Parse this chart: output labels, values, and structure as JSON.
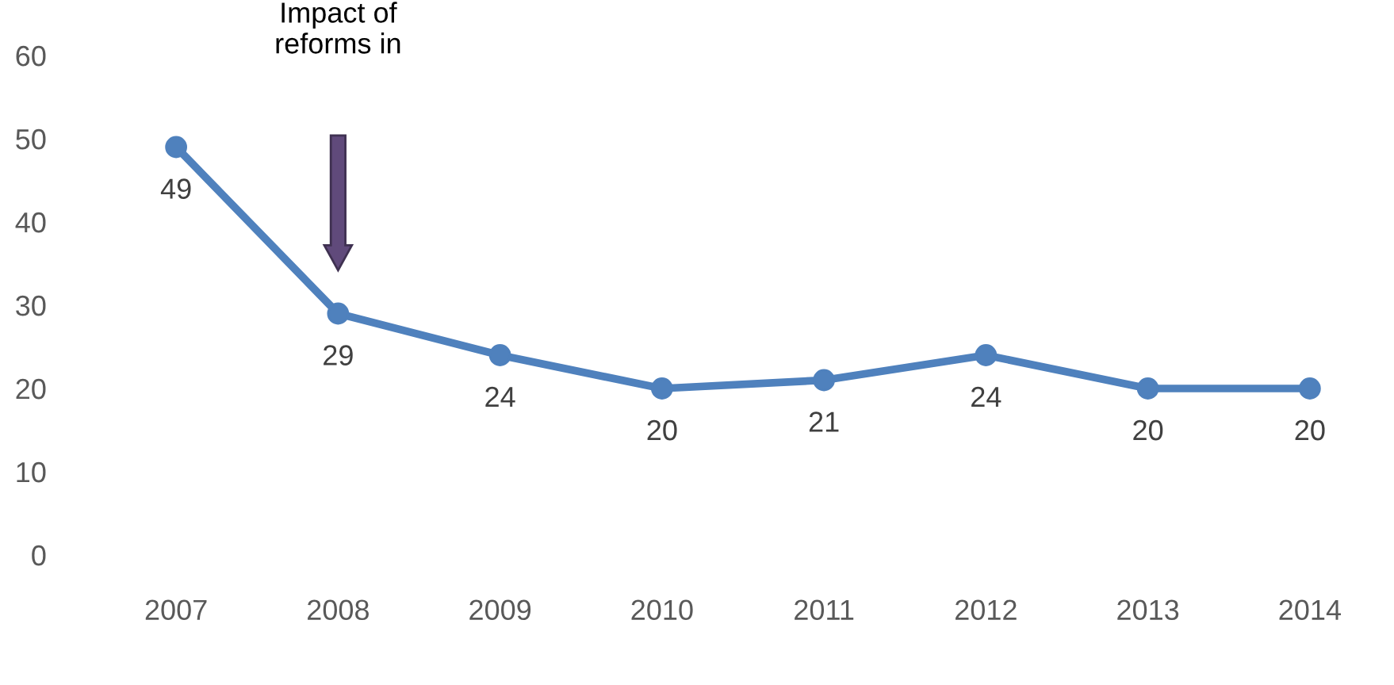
{
  "chart_data": {
    "type": "line",
    "categories": [
      "2007",
      "2008",
      "2009",
      "2010",
      "2011",
      "2012",
      "2013",
      "2014"
    ],
    "series": [
      {
        "color": "#4f81bd",
        "values": [
          49,
          29,
          24,
          20,
          21,
          24,
          20,
          20
        ]
      }
    ],
    "ylim": [
      0,
      60
    ],
    "yticks": [
      0,
      10,
      20,
      30,
      40,
      50,
      60
    ],
    "marker": "circle",
    "line_style": "solid",
    "grid": false,
    "data_labels": true,
    "annotations": [
      "Impact of\nreforms in"
    ]
  }
}
